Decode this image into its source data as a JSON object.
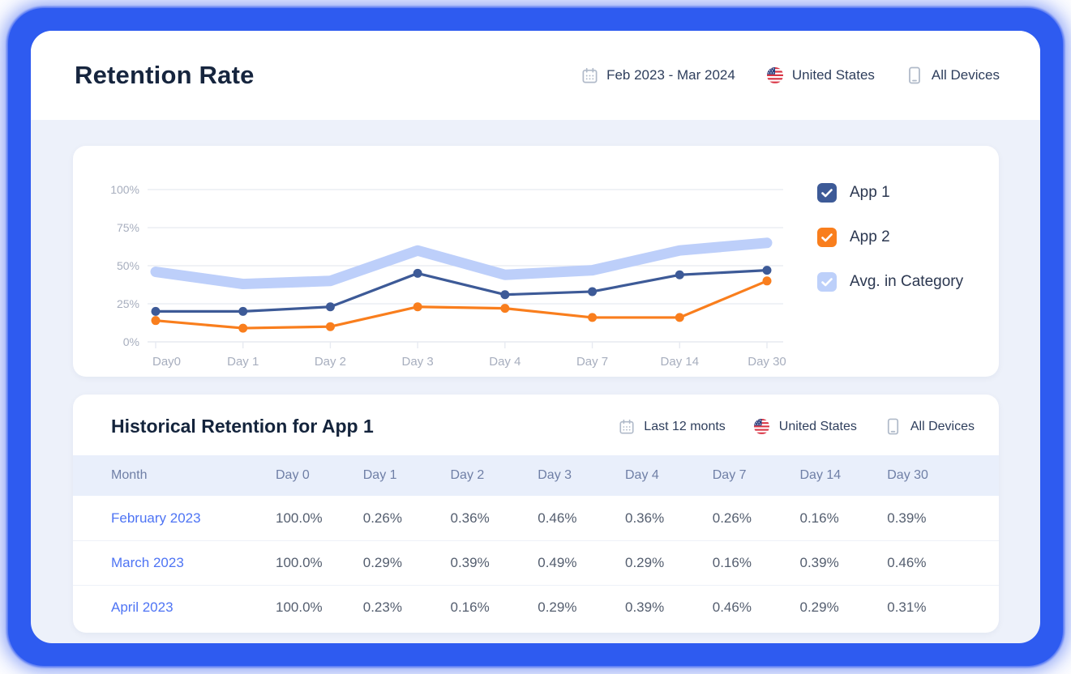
{
  "header": {
    "title": "Retention Rate",
    "filters": [
      {
        "icon": "calendar-icon",
        "label": "Feb 2023 - Mar 2024"
      },
      {
        "icon": "us-flag-icon",
        "label": "United States"
      },
      {
        "icon": "device-icon",
        "label": "All Devices"
      }
    ]
  },
  "chart_card": {
    "legend": [
      {
        "label": "App 1",
        "color": "#3d5a97",
        "checked": true
      },
      {
        "label": "App 2",
        "color": "#f97e1d",
        "checked": true
      },
      {
        "label": "Avg. in Category",
        "color": "#bdd0fa",
        "checked": true
      }
    ]
  },
  "chart_data": {
    "type": "line",
    "x": [
      "Day0",
      "Day 1",
      "Day 2",
      "Day 3",
      "Day 4",
      "Day 7",
      "Day 14",
      "Day 30"
    ],
    "yticks": [
      "0%",
      "25%",
      "50%",
      "75%",
      "100%"
    ],
    "ytick_values": [
      0,
      25,
      50,
      75,
      100
    ],
    "ylim": [
      0,
      100
    ],
    "grid": true,
    "legend_position": "right",
    "series": [
      {
        "name": "App 1",
        "color": "#3d5a97",
        "style": "line",
        "values": [
          20,
          20,
          23,
          45,
          31,
          33,
          44,
          47
        ]
      },
      {
        "name": "App 2",
        "color": "#f97e1d",
        "style": "line",
        "values": [
          14,
          9,
          10,
          23,
          22,
          16,
          16,
          40
        ]
      },
      {
        "name": "Avg. in Category",
        "color": "#bdcffa",
        "style": "band",
        "values": [
          46,
          38,
          40,
          60,
          44,
          47,
          60,
          65
        ]
      }
    ]
  },
  "table_card": {
    "title": "Historical Retention for App 1",
    "filters": [
      {
        "icon": "calendar-icon",
        "label": "Last 12 monts"
      },
      {
        "icon": "us-flag-icon",
        "label": "United States"
      },
      {
        "icon": "device-icon",
        "label": "All Devices"
      }
    ],
    "columns": [
      "Month",
      "Day 0",
      "Day 1",
      "Day 2",
      "Day 3",
      "Day 4",
      "Day 7",
      "Day 14",
      "Day 30"
    ],
    "rows": [
      {
        "month": "February 2023",
        "values": [
          "100.0%",
          "0.26%",
          "0.36%",
          "0.46%",
          "0.36%",
          "0.26%",
          "0.16%",
          "0.39%"
        ]
      },
      {
        "month": "March 2023",
        "values": [
          "100.0%",
          "0.29%",
          "0.39%",
          "0.49%",
          "0.29%",
          "0.16%",
          "0.39%",
          "0.46%"
        ]
      },
      {
        "month": "April 2023",
        "values": [
          "100.0%",
          "0.23%",
          "0.16%",
          "0.29%",
          "0.39%",
          "0.46%",
          "0.29%",
          "0.31%"
        ]
      }
    ]
  },
  "colors": {
    "frame": "#2e5bf0",
    "window_bg": "#edf1fa",
    "card_bg": "#ffffff",
    "title": "#16253e",
    "axis_label": "#a7aebe",
    "gridline": "#e7eaf1",
    "table_header_bg": "#e9effb",
    "table_header_text": "#6f7fa6",
    "month_link": "#4e74f4",
    "cell_text": "#545e6f",
    "app1": "#3d5a97",
    "app2": "#f97e1d",
    "avg_band": "#bdcffa"
  }
}
